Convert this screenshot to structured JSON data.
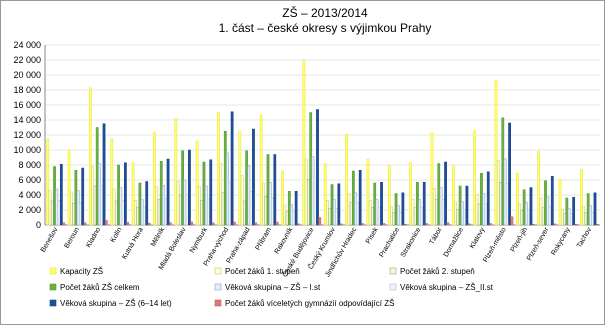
{
  "chart_data": {
    "type": "bar",
    "title": "ZŠ – 2013/2014",
    "subtitle": "1. část – české okresy s výjimkou Prahy",
    "categories": [
      "Benešov",
      "Beroun",
      "Kladno",
      "Kolín",
      "Kutná Hora",
      "Mělník",
      "Mladá Boleslav",
      "Nymburk",
      "Praha-východ",
      "Praha-západ",
      "Příbram",
      "Rakovník",
      "České Budějovice",
      "Český Krumlov",
      "Jindřichův Hradec",
      "Písek",
      "Prachatice",
      "Strakonice",
      "Tábor",
      "Domažlice",
      "Klatovy",
      "Plzeň-město",
      "Plzeň-jih",
      "Plzeň-sever",
      "Rokycany",
      "Tachov"
    ],
    "series": [
      {
        "name": "Kapacity ZŠ",
        "color": "#ffff66",
        "stroke": "#e6e64d",
        "values": [
          11500,
          10000,
          18300,
          11500,
          8300,
          12400,
          14200,
          11200,
          15000,
          12500,
          14700,
          7200,
          22000,
          8200,
          12100,
          8800,
          7900,
          8300,
          12300,
          8000,
          12600,
          19300,
          6900,
          9800,
          6100,
          7400
        ]
      },
      {
        "name": "Počet žáků 1. stupeň",
        "color": "#ffffcc",
        "stroke": "#c8c870",
        "values": [
          4600,
          4400,
          7800,
          4800,
          3300,
          5100,
          5800,
          5100,
          8200,
          6600,
          5600,
          2700,
          8800,
          3300,
          4200,
          3300,
          2500,
          3400,
          4900,
          3100,
          4100,
          8600,
          2800,
          3600,
          2100,
          2500
        ]
      },
      {
        "name": "Počet žáků 2. stupeň",
        "color": "#f4f8e4",
        "stroke": "#8aaa5a",
        "values": [
          3200,
          2900,
          5200,
          3200,
          2300,
          3400,
          4000,
          3300,
          4300,
          3200,
          3800,
          1800,
          6100,
          2200,
          3000,
          2300,
          1700,
          2300,
          3400,
          2100,
          2800,
          5700,
          1900,
          2300,
          1500,
          1700
        ]
      },
      {
        "name": "Počet žáků ZŠ celkem",
        "color": "#6aaf3f",
        "stroke": "#5a9a35",
        "values": [
          7800,
          7300,
          13000,
          8000,
          5600,
          8500,
          9900,
          8400,
          12500,
          9900,
          9400,
          4500,
          15000,
          5400,
          7200,
          5600,
          4200,
          5700,
          8200,
          5200,
          6900,
          14300,
          4700,
          5900,
          3600,
          4200
        ]
      },
      {
        "name": "Věková skupina – ZŠ – I.st",
        "color": "#e4eef8",
        "stroke": "#7fa2cc",
        "values": [
          4800,
          4600,
          8200,
          5000,
          3400,
          5300,
          6000,
          5200,
          9600,
          7900,
          5700,
          2700,
          9100,
          3400,
          4300,
          3400,
          2600,
          3400,
          5000,
          3100,
          4200,
          8800,
          3000,
          3800,
          2200,
          2600
        ]
      },
      {
        "name": "Věková skupina – ZŠ_II.st",
        "color": "#f0f4fa",
        "stroke": "#a8bcd8",
        "values": [
          3300,
          3000,
          5300,
          3300,
          2400,
          3500,
          4100,
          3500,
          5600,
          4500,
          3700,
          1800,
          6300,
          2200,
          3000,
          2300,
          1700,
          2300,
          3400,
          2100,
          2900,
          5500,
          2000,
          2500,
          1500,
          1700
        ]
      },
      {
        "name": "Věková skupina – ZŠ (6–14 let)",
        "color": "#1f4e9a",
        "stroke": "#1a4285",
        "values": [
          8100,
          7600,
          13500,
          8300,
          5800,
          8800,
          10000,
          8700,
          15100,
          12800,
          9400,
          4500,
          15400,
          5500,
          7300,
          5700,
          4300,
          5700,
          8400,
          5200,
          7100,
          13600,
          5000,
          6500,
          3700,
          4300
        ]
      },
      {
        "name": "Počet žáků víceletých gymnázií odpovídající ZŠ",
        "color": "#e07a7a",
        "stroke": "#c05a5a",
        "values": [
          300,
          300,
          600,
          350,
          250,
          300,
          400,
          300,
          400,
          300,
          400,
          150,
          1000,
          150,
          200,
          200,
          100,
          200,
          300,
          150,
          200,
          1100,
          100,
          150,
          100,
          100
        ]
      }
    ],
    "ylim": [
      0,
      24000
    ],
    "yticks": [
      {
        "value": 0,
        "label": "0"
      },
      {
        "value": 2000,
        "label": "2 000"
      },
      {
        "value": 4000,
        "label": "4 000"
      },
      {
        "value": 6000,
        "label": "6 000"
      },
      {
        "value": 8000,
        "label": "8 000"
      },
      {
        "value": 10000,
        "label": "10 000"
      },
      {
        "value": 12000,
        "label": "12 000"
      },
      {
        "value": 14000,
        "label": "14 000"
      },
      {
        "value": 16000,
        "label": "16 000"
      },
      {
        "value": 18000,
        "label": "18 000"
      },
      {
        "value": 20000,
        "label": "20 000"
      },
      {
        "value": 22000,
        "label": "22 000"
      },
      {
        "value": 24000,
        "label": "24 000"
      }
    ],
    "grid": true
  }
}
